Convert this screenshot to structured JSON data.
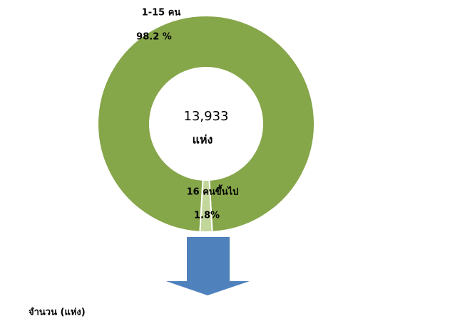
{
  "chart_data": {
    "type": "pie",
    "donut": true,
    "categories": [
      "1-15 คน",
      "16 คนขึ้นไป"
    ],
    "values": [
      98.2,
      1.8
    ],
    "value_labels": [
      "98.2 %",
      "1.8%"
    ],
    "colors": [
      "#86a64a",
      "#c3d69b"
    ],
    "center_label": "13,933",
    "center_sublabel": "แห่ง",
    "footnote": "จำนวน (แห่ง)"
  }
}
